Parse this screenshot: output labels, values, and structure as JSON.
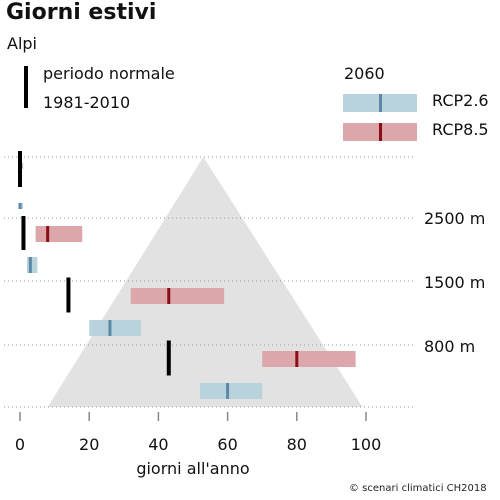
{
  "title": "Giorni estivi",
  "subtitle": "Alpi",
  "legend": {
    "normal_line1": "periodo normale",
    "normal_line2": "1981-2010",
    "year": "2060",
    "rcp26": "RCP2.6",
    "rcp85": "RCP8.5"
  },
  "source": "© scenari climatici CH2018",
  "colors": {
    "rcp26_bar": "#b9d3dc",
    "rcp26_tick": "#5b8aa8",
    "rcp85_bar": "#dca7aa",
    "rcp85_tick": "#8b0d16",
    "normal": "#000000",
    "mountain": "#e2e2e2"
  },
  "chart_data": {
    "type": "range",
    "xlabel": "giorni all'anno",
    "xlim": [
      0,
      100
    ],
    "x_ticks": [
      0,
      20,
      40,
      60,
      80,
      100
    ],
    "elevation_labels": [
      "2500 m",
      "1500 m",
      "800 m"
    ],
    "bands": [
      {
        "name": "band-summit",
        "normal": 0,
        "rcp26": {
          "low": 0,
          "median": 0,
          "high": 0.5
        },
        "rcp85": {
          "low": 0,
          "median": 0,
          "high": 0.6
        }
      },
      {
        "name": "band-2500",
        "normal": 1,
        "rcp26": {
          "low": 2,
          "median": 3,
          "high": 5
        },
        "rcp85": {
          "low": 4.5,
          "median": 8,
          "high": 18
        }
      },
      {
        "name": "band-1500",
        "normal": 14,
        "rcp26": {
          "low": 20,
          "median": 26,
          "high": 35
        },
        "rcp85": {
          "low": 32,
          "median": 43,
          "high": 59
        }
      },
      {
        "name": "band-800",
        "normal": 43,
        "rcp26": {
          "low": 52,
          "median": 60,
          "high": 70
        },
        "rcp85": {
          "low": 70,
          "median": 80,
          "high": 97
        }
      }
    ]
  }
}
